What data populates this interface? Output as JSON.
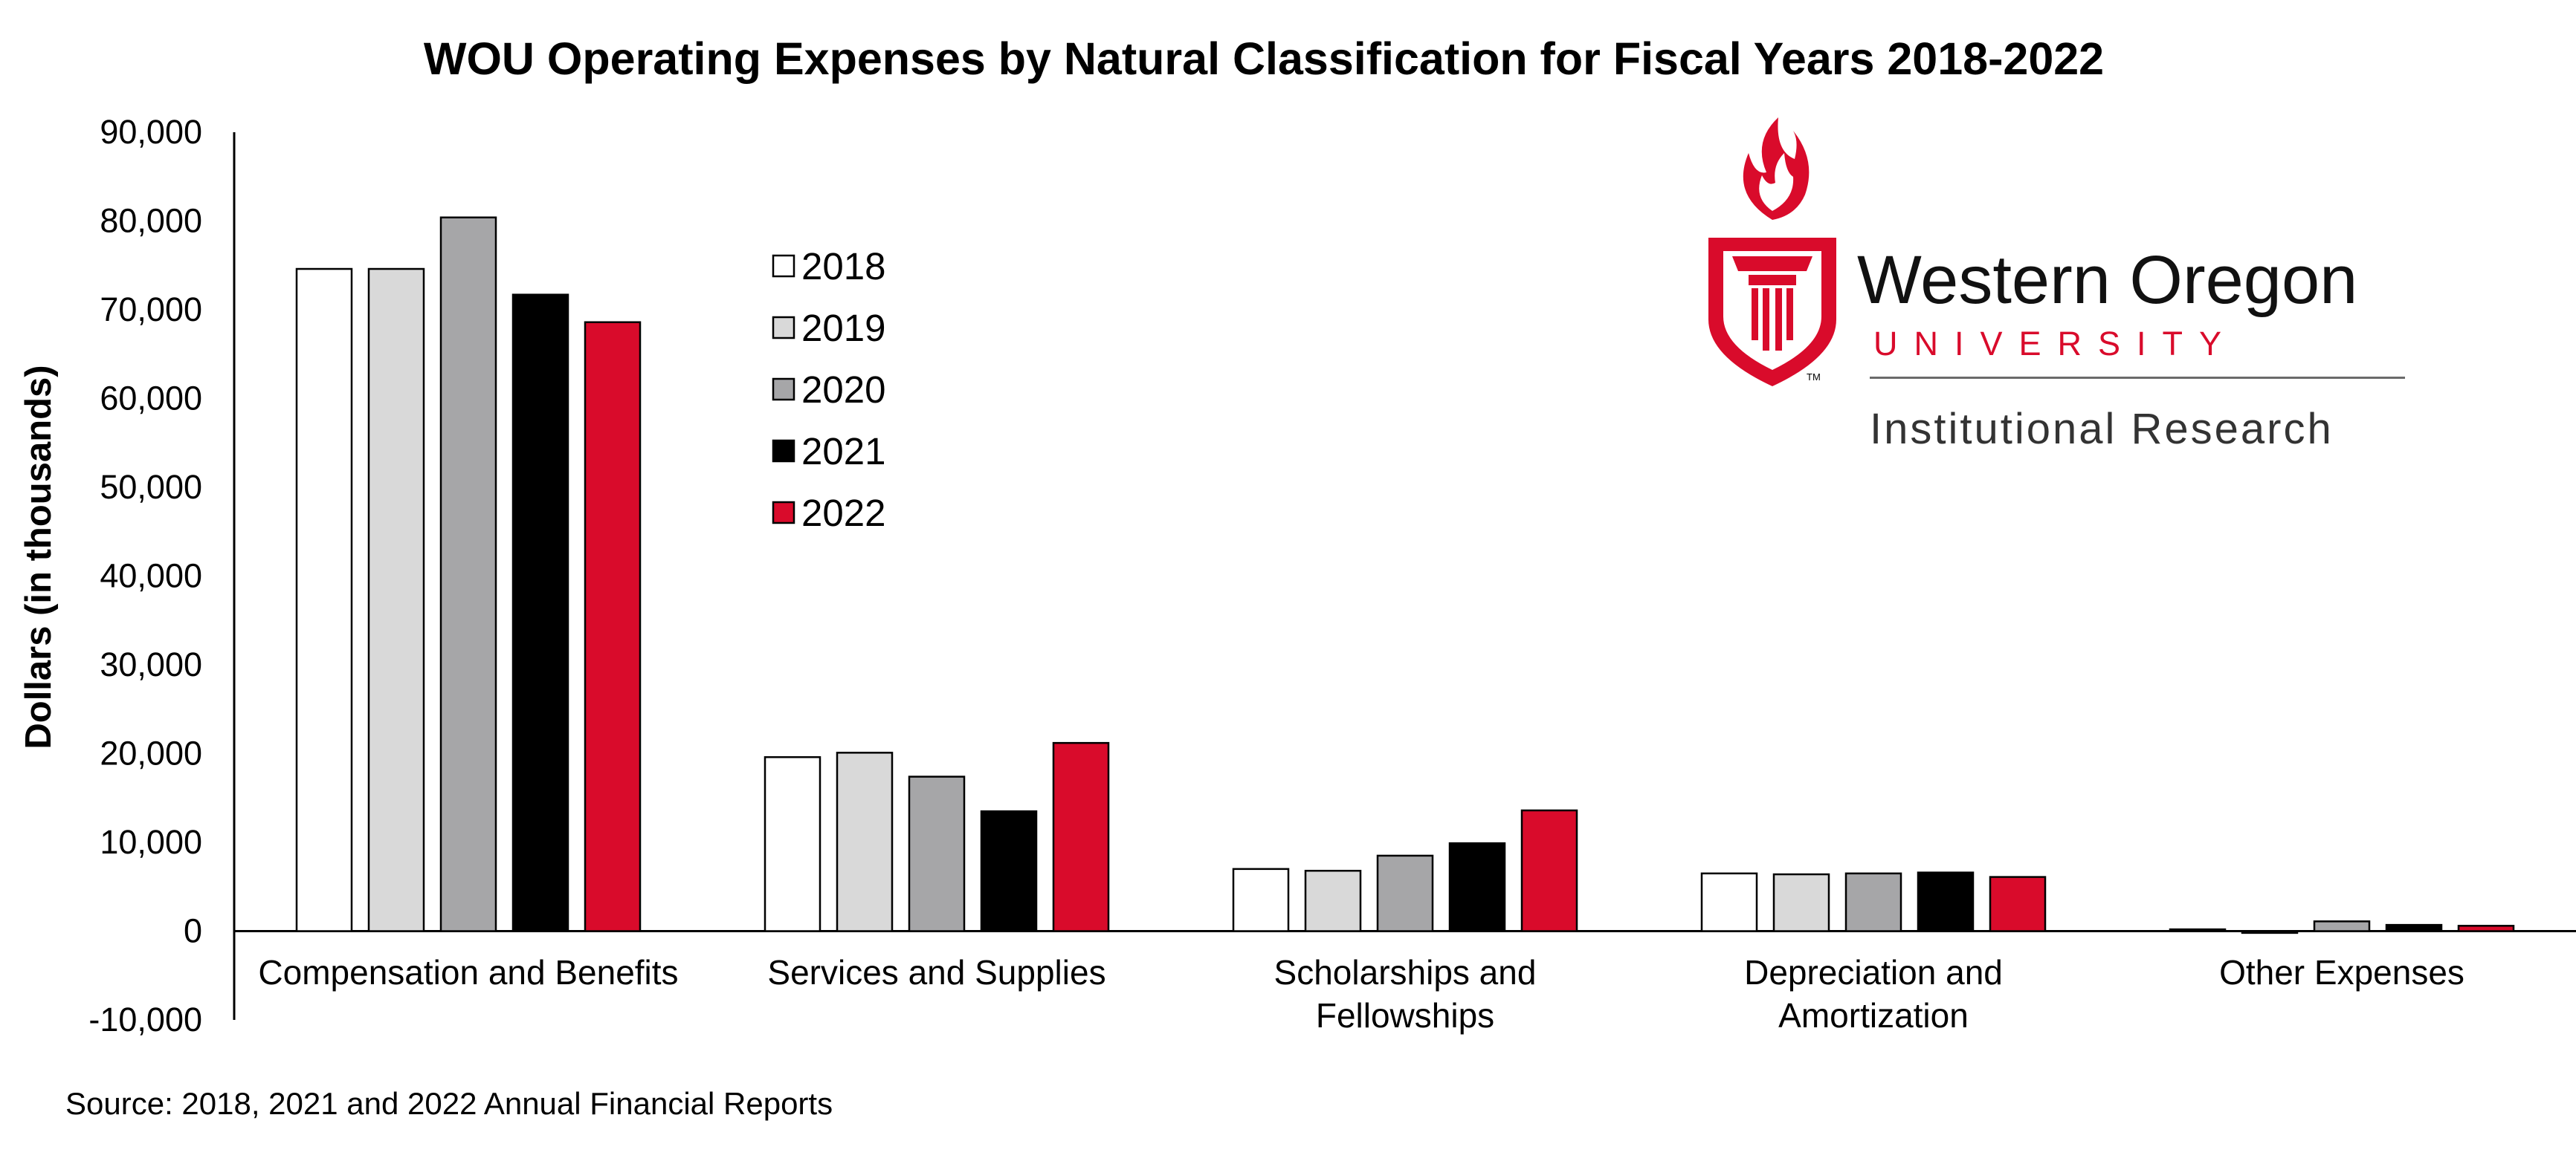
{
  "chart_data": {
    "type": "bar",
    "title": "WOU Operating Expenses by Natural Classification for Fiscal Years 2018-2022",
    "ylabel": "Dollars (in thousands)",
    "xlabel": "",
    "ylim": [
      -10000,
      90000
    ],
    "yticks": [
      -10000,
      0,
      10000,
      20000,
      30000,
      40000,
      50000,
      60000,
      70000,
      80000,
      90000
    ],
    "ytick_labels": [
      "-10,000",
      "0",
      "10,000",
      "20,000",
      "30,000",
      "40,000",
      "50,000",
      "60,000",
      "70,000",
      "80,000",
      "90,000"
    ],
    "grid": false,
    "legend_position": "upper-middle",
    "categories": [
      [
        "Compensation and Benefits"
      ],
      [
        "Services and Supplies"
      ],
      [
        "Scholarships and",
        "Fellowships"
      ],
      [
        "Depreciation and",
        "Amortization"
      ],
      [
        "Other Expenses"
      ]
    ],
    "series": [
      {
        "name": "2018",
        "color": "#ffffff",
        "values": [
          74600,
          19600,
          7000,
          6500,
          200
        ]
      },
      {
        "name": "2019",
        "color": "#d9d9d9",
        "values": [
          74600,
          20100,
          6800,
          6400,
          -200
        ]
      },
      {
        "name": "2020",
        "color": "#a6a6a8",
        "values": [
          80400,
          17400,
          8500,
          6500,
          1100
        ]
      },
      {
        "name": "2021",
        "color": "#000000",
        "values": [
          71700,
          13500,
          9900,
          6600,
          700
        ]
      },
      {
        "name": "2022",
        "color": "#d90b2b",
        "values": [
          68600,
          21200,
          13600,
          6100,
          600
        ]
      }
    ],
    "source_note": "Source: 2018, 2021 and 2022 Annual Financial Reports"
  },
  "logo": {
    "name": "Western Oregon",
    "university": "UNIVERSITY",
    "department": "Institutional Research",
    "trademark": "TM",
    "brand_color": "#d90b2b"
  }
}
